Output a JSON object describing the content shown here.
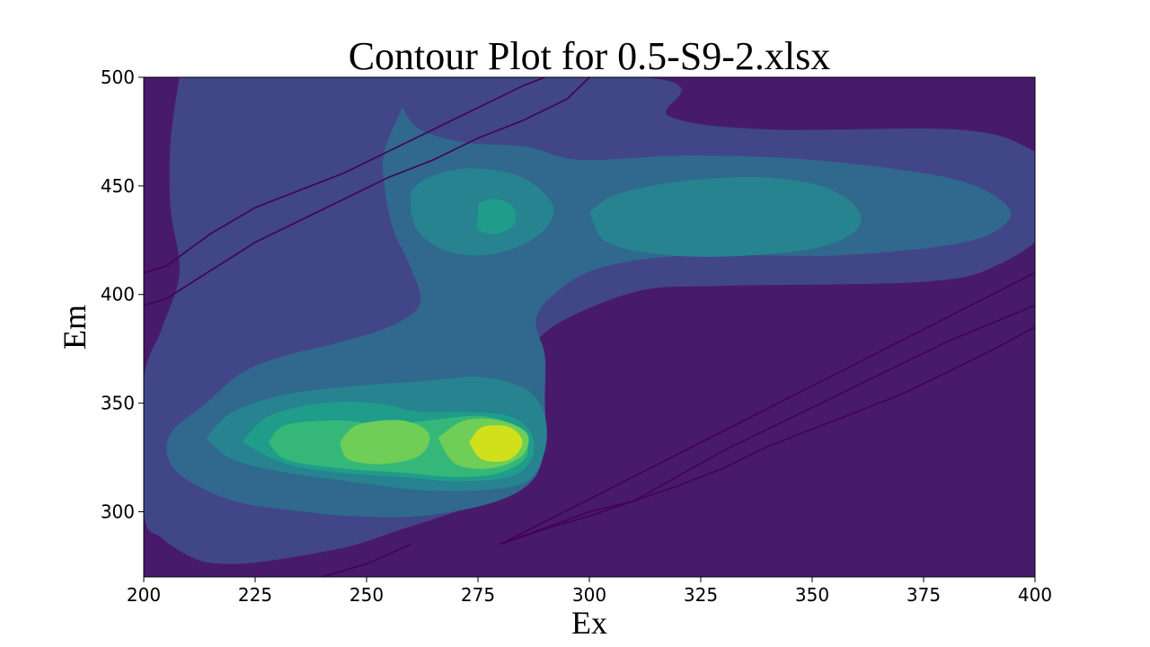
{
  "chart_data": {
    "type": "contour",
    "title": "Contour Plot for 0.5-S9-2.xlsx",
    "xlabel": "Ex",
    "ylabel": "Em",
    "xlim": [
      200,
      400
    ],
    "ylim": [
      270,
      500
    ],
    "x_ticks": [
      200,
      225,
      250,
      275,
      300,
      325,
      350,
      375,
      400
    ],
    "y_ticks": [
      300,
      350,
      400,
      450,
      500
    ],
    "x_tick_labels": [
      "200",
      "225",
      "250",
      "275",
      "300",
      "325",
      "350",
      "375",
      "400"
    ],
    "y_tick_labels": [
      "300",
      "350",
      "400",
      "450",
      "500"
    ],
    "grid": false,
    "legend": "none",
    "colormap": "viridis",
    "level_colors": [
      "#481a6c",
      "#404688",
      "#31688e",
      "#26838f",
      "#1f9d8a",
      "#35b779",
      "#6ece58",
      "#d0e11c"
    ],
    "levels": [
      {
        "level": 1,
        "regions": [
          [
            [
              208,
              500
            ],
            [
              312,
              500
            ],
            [
              318,
              482
            ],
            [
              340,
              476
            ],
            [
              382,
              476
            ],
            [
              398,
              468
            ],
            [
              406,
              452
            ],
            [
              404,
              432
            ],
            [
              392,
              414
            ],
            [
              376,
              406
            ],
            [
              330,
              404
            ],
            [
              312,
              402
            ],
            [
              296,
              390
            ],
            [
              288,
              378
            ],
            [
              286,
              362
            ],
            [
              288,
              342
            ],
            [
              286,
              322
            ],
            [
              282,
              310
            ],
            [
              270,
              300
            ],
            [
              258,
              292
            ],
            [
              246,
              284
            ],
            [
              230,
              278
            ],
            [
              220,
              276
            ],
            [
              212,
              278
            ],
            [
              204,
              288
            ],
            [
              200,
              300
            ],
            [
              200,
              360
            ],
            [
              204,
              384
            ],
            [
              208,
              410
            ],
            [
              206,
              440
            ],
            [
              206,
              470
            ],
            [
              208,
              500
            ]
          ]
        ]
      },
      {
        "level": 2,
        "regions": [
          [
            [
              258,
              486
            ],
            [
              262,
              476
            ],
            [
              272,
              470
            ],
            [
              286,
              468
            ],
            [
              298,
              462
            ],
            [
              322,
              464
            ],
            [
              350,
              462
            ],
            [
              380,
              454
            ],
            [
              392,
              444
            ],
            [
              394,
              434
            ],
            [
              384,
              424
            ],
            [
              356,
              418
            ],
            [
              322,
              418
            ],
            [
              302,
              412
            ],
            [
              292,
              400
            ],
            [
              288,
              388
            ],
            [
              290,
              372
            ],
            [
              290,
              352
            ],
            [
              290,
              330
            ],
            [
              287,
              314
            ],
            [
              278,
              304
            ],
            [
              262,
              298
            ],
            [
              246,
              298
            ],
            [
              236,
              300
            ],
            [
              222,
              304
            ],
            [
              212,
              312
            ],
            [
              206,
              322
            ],
            [
              206,
              336
            ],
            [
              214,
              350
            ],
            [
              222,
              364
            ],
            [
              232,
              372
            ],
            [
              244,
              378
            ],
            [
              256,
              386
            ],
            [
              262,
              396
            ],
            [
              260,
              412
            ],
            [
              256,
              430
            ],
            [
              254,
              450
            ],
            [
              254,
              466
            ],
            [
              258,
              486
            ]
          ]
        ]
      },
      {
        "level": 3,
        "regions": [
          [
            [
              260,
              448
            ],
            [
              264,
              454
            ],
            [
              272,
              458
            ],
            [
              282,
              456
            ],
            [
              288,
              450
            ],
            [
              292,
              440
            ],
            [
              290,
              430
            ],
            [
              284,
              422
            ],
            [
              276,
              418
            ],
            [
              268,
              420
            ],
            [
              262,
              428
            ],
            [
              260,
              438
            ],
            [
              260,
              448
            ]
          ],
          [
            [
              300,
              438
            ],
            [
              306,
              446
            ],
            [
              320,
              452
            ],
            [
              338,
              454
            ],
            [
              352,
              450
            ],
            [
              360,
              440
            ],
            [
              360,
              430
            ],
            [
              352,
              422
            ],
            [
              336,
              418
            ],
            [
              318,
              418
            ],
            [
              304,
              424
            ],
            [
              300,
              438
            ]
          ],
          [
            [
              214,
              334
            ],
            [
              220,
              346
            ],
            [
              232,
              354
            ],
            [
              248,
              358
            ],
            [
              262,
              360
            ],
            [
              276,
              362
            ],
            [
              286,
              356
            ],
            [
              290,
              344
            ],
            [
              290,
              328
            ],
            [
              286,
              314
            ],
            [
              276,
              310
            ],
            [
              262,
              310
            ],
            [
              246,
              314
            ],
            [
              232,
              318
            ],
            [
              220,
              324
            ],
            [
              214,
              334
            ]
          ]
        ]
      },
      {
        "level": 4,
        "regions": [
          [
            [
              275,
              442
            ],
            [
              279,
              444
            ],
            [
              283,
              440
            ],
            [
              283,
              432
            ],
            [
              279,
              428
            ],
            [
              275,
              430
            ],
            [
              275,
              436
            ],
            [
              275,
              442
            ]
          ],
          [
            [
              222,
              332
            ],
            [
              228,
              344
            ],
            [
              240,
              350
            ],
            [
              252,
              350
            ],
            [
              262,
              346
            ],
            [
              272,
              346
            ],
            [
              282,
              344
            ],
            [
              287,
              336
            ],
            [
              287,
              324
            ],
            [
              282,
              316
            ],
            [
              270,
              314
            ],
            [
              258,
              316
            ],
            [
              244,
              318
            ],
            [
              232,
              322
            ],
            [
              222,
              332
            ]
          ]
        ]
      },
      {
        "level": 5,
        "regions": [
          [
            [
              228,
              332
            ],
            [
              232,
              340
            ],
            [
              244,
              342
            ],
            [
              254,
              340
            ],
            [
              264,
              342
            ],
            [
              276,
              344
            ],
            [
              284,
              338
            ],
            [
              286,
              326
            ],
            [
              280,
              318
            ],
            [
              270,
              316
            ],
            [
              258,
              318
            ],
            [
              244,
              320
            ],
            [
              232,
              324
            ],
            [
              228,
              332
            ]
          ]
        ]
      },
      {
        "level": 6,
        "regions": [
          [
            [
              244,
              332
            ],
            [
              248,
              340
            ],
            [
              258,
              342
            ],
            [
              264,
              336
            ],
            [
              262,
              326
            ],
            [
              254,
              322
            ],
            [
              246,
              324
            ],
            [
              244,
              332
            ]
          ],
          [
            [
              266,
              334
            ],
            [
              272,
              342
            ],
            [
              280,
              342
            ],
            [
              286,
              336
            ],
            [
              285,
              326
            ],
            [
              278,
              320
            ],
            [
              270,
              322
            ],
            [
              266,
              334
            ]
          ]
        ]
      },
      {
        "level": 7,
        "regions": [
          [
            [
              273,
              332
            ],
            [
              276,
              339
            ],
            [
              282,
              339
            ],
            [
              285,
              332
            ],
            [
              282,
              324
            ],
            [
              276,
              324
            ],
            [
              273,
              332
            ]
          ]
        ]
      }
    ],
    "line_contours": [
      [
        [
          200,
          410
        ],
        [
          205,
          413
        ],
        [
          215,
          428
        ],
        [
          225,
          440
        ],
        [
          235,
          448
        ],
        [
          245,
          456
        ],
        [
          255,
          466
        ],
        [
          265,
          476
        ],
        [
          275,
          486
        ],
        [
          285,
          496
        ],
        [
          290,
          500
        ]
      ],
      [
        [
          200,
          395
        ],
        [
          205,
          398
        ],
        [
          215,
          411
        ],
        [
          225,
          424
        ],
        [
          235,
          434
        ],
        [
          245,
          444
        ],
        [
          255,
          454
        ],
        [
          265,
          462
        ],
        [
          275,
          472
        ],
        [
          285,
          480
        ],
        [
          295,
          490
        ],
        [
          300,
          500
        ]
      ],
      [
        [
          240,
          270
        ],
        [
          250,
          276
        ],
        [
          260,
          285
        ]
      ],
      [
        [
          280,
          285
        ],
        [
          300,
          300
        ],
        [
          310,
          305
        ],
        [
          320,
          312
        ],
        [
          330,
          320
        ],
        [
          340,
          330
        ],
        [
          350,
          338
        ],
        [
          360,
          346
        ],
        [
          370,
          354
        ],
        [
          380,
          364
        ],
        [
          390,
          374
        ],
        [
          400,
          385
        ]
      ],
      [
        [
          280,
          285
        ],
        [
          290,
          292
        ],
        [
          300,
          298
        ],
        [
          310,
          305
        ],
        [
          330,
          328
        ],
        [
          340,
          338
        ],
        [
          360,
          358
        ],
        [
          380,
          378
        ],
        [
          400,
          395
        ]
      ],
      [
        [
          280,
          285
        ],
        [
          400,
          410
        ]
      ]
    ]
  }
}
